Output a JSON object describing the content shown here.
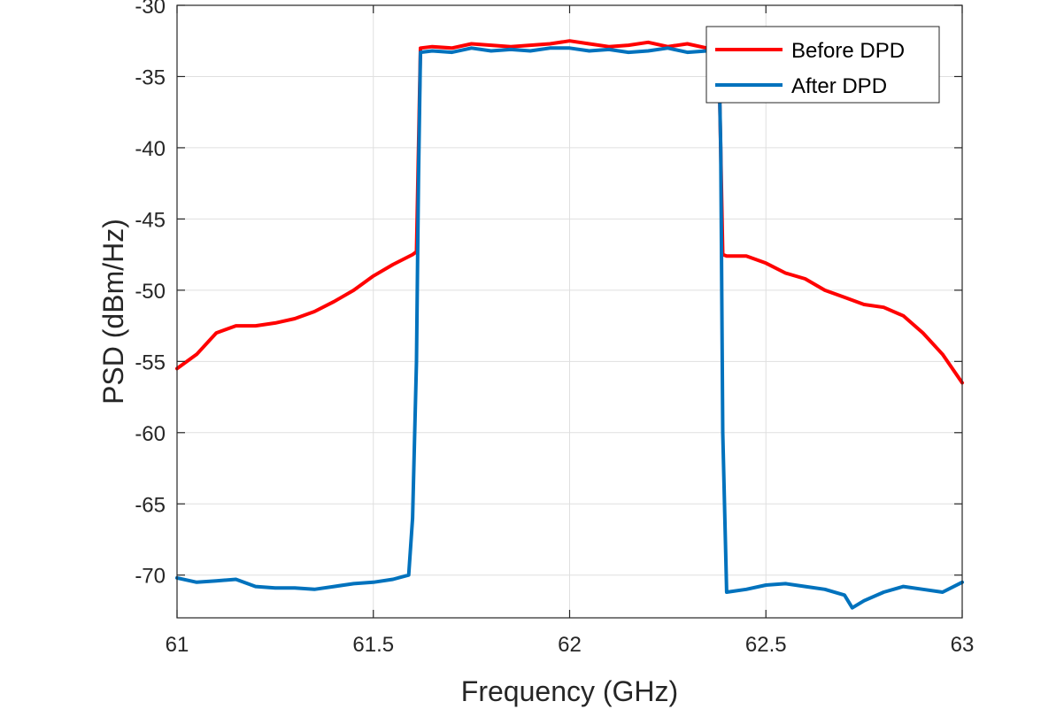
{
  "chart_data": {
    "type": "line",
    "title": "",
    "xlabel": "Frequency (GHz)",
    "ylabel": "PSD (dBm/Hz)",
    "xlim": [
      61,
      63
    ],
    "ylim": [
      -73,
      -30
    ],
    "xticks": [
      "61",
      "61.5",
      "62",
      "62.5",
      "63"
    ],
    "yticks": [
      "-30",
      "-35",
      "-40",
      "-45",
      "-50",
      "-55",
      "-60",
      "-65",
      "-70"
    ],
    "grid": true,
    "legend_position": "top-right",
    "series": [
      {
        "name": "Before DPD",
        "color": "#ff0000",
        "x": [
          61.0,
          61.05,
          61.1,
          61.15,
          61.2,
          61.25,
          61.3,
          61.35,
          61.4,
          61.45,
          61.5,
          61.55,
          61.6,
          61.61,
          61.62,
          61.65,
          61.7,
          61.75,
          61.8,
          61.85,
          61.9,
          61.95,
          62.0,
          62.05,
          62.1,
          62.15,
          62.2,
          62.25,
          62.3,
          62.35,
          62.38,
          62.39,
          62.4,
          62.45,
          62.5,
          62.55,
          62.6,
          62.65,
          62.7,
          62.75,
          62.8,
          62.85,
          62.9,
          62.95,
          63.0
        ],
        "values": [
          -55.5,
          -54.5,
          -53.0,
          -52.5,
          -52.5,
          -52.3,
          -52.0,
          -51.5,
          -50.8,
          -50.0,
          -49.0,
          -48.2,
          -47.5,
          -47.3,
          -33.0,
          -32.9,
          -33.0,
          -32.7,
          -32.8,
          -32.9,
          -32.8,
          -32.7,
          -32.5,
          -32.7,
          -32.9,
          -32.8,
          -32.6,
          -32.9,
          -32.7,
          -33.0,
          -33.2,
          -47.5,
          -47.6,
          -47.6,
          -48.1,
          -48.8,
          -49.2,
          -50.0,
          -50.5,
          -51.0,
          -51.2,
          -51.8,
          -53.0,
          -54.5,
          -56.5
        ]
      },
      {
        "name": "After DPD",
        "color": "#0072bd",
        "x": [
          61.0,
          61.05,
          61.1,
          61.15,
          61.2,
          61.25,
          61.3,
          61.35,
          61.4,
          61.45,
          61.5,
          61.55,
          61.59,
          61.6,
          61.61,
          61.615,
          61.62,
          61.65,
          61.7,
          61.75,
          61.8,
          61.85,
          61.9,
          61.95,
          62.0,
          62.05,
          62.1,
          62.15,
          62.2,
          62.25,
          62.3,
          62.35,
          62.37,
          62.38,
          62.385,
          62.39,
          62.4,
          62.45,
          62.5,
          62.55,
          62.6,
          62.65,
          62.7,
          62.72,
          62.75,
          62.8,
          62.85,
          62.9,
          62.95,
          63.0
        ],
        "values": [
          -70.2,
          -70.5,
          -70.4,
          -70.3,
          -70.8,
          -70.9,
          -70.9,
          -71.0,
          -70.8,
          -70.6,
          -70.5,
          -70.3,
          -70.0,
          -66.0,
          -55.0,
          -42.0,
          -33.3,
          -33.2,
          -33.3,
          -33.0,
          -33.2,
          -33.1,
          -33.2,
          -33.0,
          -33.0,
          -33.2,
          -33.1,
          -33.3,
          -33.2,
          -33.0,
          -33.3,
          -33.2,
          -33.1,
          -33.0,
          -40.0,
          -60.0,
          -71.2,
          -71.0,
          -70.7,
          -70.6,
          -70.8,
          -71.0,
          -71.4,
          -72.3,
          -71.8,
          -71.2,
          -70.8,
          -71.0,
          -71.2,
          -70.5
        ]
      }
    ]
  }
}
